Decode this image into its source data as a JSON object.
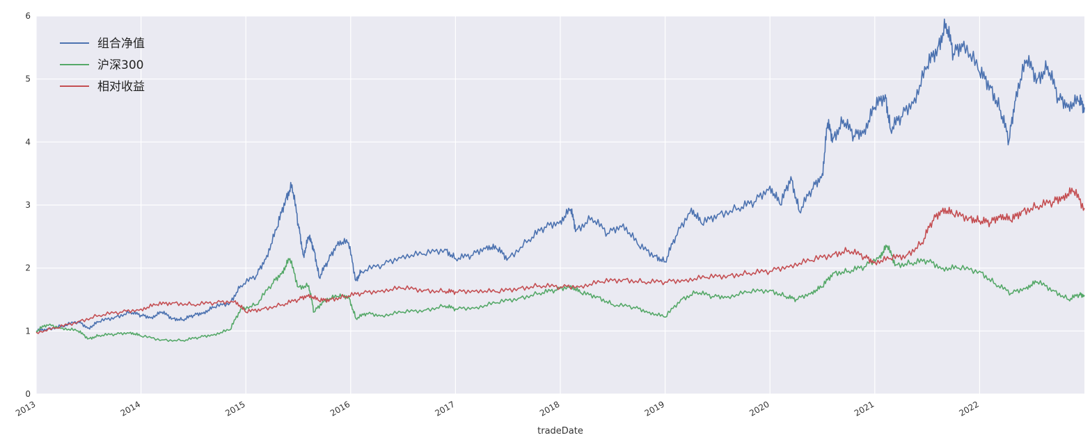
{
  "chart_data": {
    "type": "line",
    "title": "",
    "xlabel": "tradeDate",
    "ylabel": "",
    "xlim": [
      2013.0,
      2023.0
    ],
    "ylim": [
      0,
      6
    ],
    "x_ticks": [
      "2013",
      "2014",
      "2015",
      "2016",
      "2017",
      "2018",
      "2019",
      "2020",
      "2021",
      "2022"
    ],
    "y_ticks": [
      "0",
      "1",
      "2",
      "3",
      "4",
      "5",
      "6"
    ],
    "grid": true,
    "legend_position": "top-left",
    "background": "#eaeaf2",
    "series": [
      {
        "name": "组合净值",
        "color": "#4c72b0",
        "points": [
          [
            2013.0,
            1.0
          ],
          [
            2013.1,
            1.03
          ],
          [
            2013.25,
            1.08
          ],
          [
            2013.4,
            1.15
          ],
          [
            2013.5,
            1.05
          ],
          [
            2013.6,
            1.15
          ],
          [
            2013.75,
            1.22
          ],
          [
            2013.9,
            1.3
          ],
          [
            2014.0,
            1.25
          ],
          [
            2014.1,
            1.22
          ],
          [
            2014.2,
            1.3
          ],
          [
            2014.3,
            1.2
          ],
          [
            2014.4,
            1.18
          ],
          [
            2014.5,
            1.25
          ],
          [
            2014.6,
            1.3
          ],
          [
            2014.7,
            1.38
          ],
          [
            2014.85,
            1.45
          ],
          [
            2014.95,
            1.72
          ],
          [
            2015.1,
            1.88
          ],
          [
            2015.2,
            2.2
          ],
          [
            2015.3,
            2.65
          ],
          [
            2015.38,
            3.1
          ],
          [
            2015.44,
            3.32
          ],
          [
            2015.5,
            2.7
          ],
          [
            2015.55,
            2.2
          ],
          [
            2015.6,
            2.5
          ],
          [
            2015.65,
            2.3
          ],
          [
            2015.7,
            1.85
          ],
          [
            2015.78,
            2.1
          ],
          [
            2015.88,
            2.42
          ],
          [
            2015.98,
            2.4
          ],
          [
            2016.05,
            1.8
          ],
          [
            2016.1,
            1.95
          ],
          [
            2016.3,
            2.05
          ],
          [
            2016.5,
            2.2
          ],
          [
            2016.7,
            2.22
          ],
          [
            2016.9,
            2.3
          ],
          [
            2017.0,
            2.15
          ],
          [
            2017.15,
            2.2
          ],
          [
            2017.3,
            2.35
          ],
          [
            2017.4,
            2.3
          ],
          [
            2017.5,
            2.15
          ],
          [
            2017.7,
            2.45
          ],
          [
            2017.85,
            2.65
          ],
          [
            2018.0,
            2.75
          ],
          [
            2018.1,
            2.93
          ],
          [
            2018.15,
            2.6
          ],
          [
            2018.3,
            2.8
          ],
          [
            2018.45,
            2.55
          ],
          [
            2018.6,
            2.7
          ],
          [
            2018.75,
            2.35
          ],
          [
            2018.9,
            2.2
          ],
          [
            2019.0,
            2.1
          ],
          [
            2019.1,
            2.5
          ],
          [
            2019.25,
            2.95
          ],
          [
            2019.35,
            2.7
          ],
          [
            2019.5,
            2.85
          ],
          [
            2019.7,
            2.95
          ],
          [
            2019.85,
            3.05
          ],
          [
            2020.0,
            3.3
          ],
          [
            2020.1,
            3.0
          ],
          [
            2020.2,
            3.45
          ],
          [
            2020.28,
            2.9
          ],
          [
            2020.4,
            3.25
          ],
          [
            2020.5,
            3.5
          ],
          [
            2020.55,
            4.3
          ],
          [
            2020.6,
            4.05
          ],
          [
            2020.7,
            4.35
          ],
          [
            2020.8,
            4.1
          ],
          [
            2020.9,
            4.2
          ],
          [
            2021.0,
            4.55
          ],
          [
            2021.1,
            4.75
          ],
          [
            2021.15,
            4.2
          ],
          [
            2021.25,
            4.4
          ],
          [
            2021.38,
            4.7
          ],
          [
            2021.5,
            5.2
          ],
          [
            2021.6,
            5.5
          ],
          [
            2021.68,
            5.88
          ],
          [
            2021.75,
            5.4
          ],
          [
            2021.85,
            5.6
          ],
          [
            2022.0,
            5.1
          ],
          [
            2022.1,
            4.9
          ],
          [
            2022.2,
            4.5
          ],
          [
            2022.28,
            4.02
          ],
          [
            2022.35,
            4.8
          ],
          [
            2022.45,
            5.3
          ],
          [
            2022.55,
            5.0
          ],
          [
            2022.65,
            5.2
          ],
          [
            2022.75,
            4.7
          ],
          [
            2022.85,
            4.6
          ],
          [
            2022.95,
            4.65
          ],
          [
            2023.0,
            4.55
          ]
        ]
      },
      {
        "name": "沪深300",
        "color": "#55a868",
        "points": [
          [
            2013.0,
            1.0
          ],
          [
            2013.1,
            1.1
          ],
          [
            2013.25,
            1.05
          ],
          [
            2013.4,
            1.0
          ],
          [
            2013.5,
            0.88
          ],
          [
            2013.6,
            0.93
          ],
          [
            2013.75,
            0.95
          ],
          [
            2013.9,
            0.98
          ],
          [
            2014.0,
            0.92
          ],
          [
            2014.2,
            0.86
          ],
          [
            2014.4,
            0.85
          ],
          [
            2014.55,
            0.9
          ],
          [
            2014.7,
            0.95
          ],
          [
            2014.85,
            1.02
          ],
          [
            2014.95,
            1.35
          ],
          [
            2015.1,
            1.42
          ],
          [
            2015.25,
            1.75
          ],
          [
            2015.35,
            1.95
          ],
          [
            2015.42,
            2.15
          ],
          [
            2015.5,
            1.7
          ],
          [
            2015.6,
            1.72
          ],
          [
            2015.65,
            1.3
          ],
          [
            2015.75,
            1.5
          ],
          [
            2015.88,
            1.55
          ],
          [
            2015.98,
            1.55
          ],
          [
            2016.05,
            1.2
          ],
          [
            2016.15,
            1.28
          ],
          [
            2016.3,
            1.25
          ],
          [
            2016.5,
            1.3
          ],
          [
            2016.7,
            1.33
          ],
          [
            2016.9,
            1.4
          ],
          [
            2017.0,
            1.35
          ],
          [
            2017.2,
            1.38
          ],
          [
            2017.4,
            1.45
          ],
          [
            2017.6,
            1.52
          ],
          [
            2017.8,
            1.6
          ],
          [
            2017.95,
            1.65
          ],
          [
            2018.1,
            1.72
          ],
          [
            2018.2,
            1.6
          ],
          [
            2018.35,
            1.55
          ],
          [
            2018.5,
            1.42
          ],
          [
            2018.7,
            1.38
          ],
          [
            2018.85,
            1.3
          ],
          [
            2019.0,
            1.22
          ],
          [
            2019.15,
            1.5
          ],
          [
            2019.3,
            1.62
          ],
          [
            2019.45,
            1.55
          ],
          [
            2019.6,
            1.55
          ],
          [
            2019.8,
            1.62
          ],
          [
            2020.0,
            1.65
          ],
          [
            2020.15,
            1.55
          ],
          [
            2020.25,
            1.5
          ],
          [
            2020.4,
            1.62
          ],
          [
            2020.5,
            1.7
          ],
          [
            2020.6,
            1.92
          ],
          [
            2020.75,
            1.95
          ],
          [
            2020.9,
            2.02
          ],
          [
            2021.05,
            2.2
          ],
          [
            2021.12,
            2.35
          ],
          [
            2021.2,
            2.05
          ],
          [
            2021.35,
            2.08
          ],
          [
            2021.5,
            2.12
          ],
          [
            2021.65,
            2.0
          ],
          [
            2021.8,
            2.0
          ],
          [
            2022.0,
            1.95
          ],
          [
            2022.15,
            1.75
          ],
          [
            2022.3,
            1.6
          ],
          [
            2022.45,
            1.7
          ],
          [
            2022.55,
            1.78
          ],
          [
            2022.7,
            1.65
          ],
          [
            2022.85,
            1.5
          ],
          [
            2022.95,
            1.58
          ],
          [
            2023.0,
            1.57
          ]
        ]
      },
      {
        "name": "相对收益",
        "color": "#c44e52",
        "points": [
          [
            2013.0,
            0.98
          ],
          [
            2013.2,
            1.05
          ],
          [
            2013.4,
            1.15
          ],
          [
            2013.6,
            1.25
          ],
          [
            2013.8,
            1.3
          ],
          [
            2014.0,
            1.35
          ],
          [
            2014.15,
            1.42
          ],
          [
            2014.3,
            1.45
          ],
          [
            2014.5,
            1.42
          ],
          [
            2014.7,
            1.45
          ],
          [
            2014.9,
            1.48
          ],
          [
            2015.0,
            1.3
          ],
          [
            2015.15,
            1.35
          ],
          [
            2015.35,
            1.42
          ],
          [
            2015.5,
            1.5
          ],
          [
            2015.6,
            1.58
          ],
          [
            2015.7,
            1.48
          ],
          [
            2015.8,
            1.5
          ],
          [
            2015.95,
            1.55
          ],
          [
            2016.1,
            1.6
          ],
          [
            2016.3,
            1.65
          ],
          [
            2016.5,
            1.68
          ],
          [
            2016.7,
            1.65
          ],
          [
            2016.9,
            1.63
          ],
          [
            2017.0,
            1.62
          ],
          [
            2017.2,
            1.65
          ],
          [
            2017.4,
            1.62
          ],
          [
            2017.6,
            1.68
          ],
          [
            2017.8,
            1.72
          ],
          [
            2018.0,
            1.7
          ],
          [
            2018.2,
            1.72
          ],
          [
            2018.4,
            1.78
          ],
          [
            2018.6,
            1.82
          ],
          [
            2018.8,
            1.78
          ],
          [
            2019.0,
            1.78
          ],
          [
            2019.2,
            1.82
          ],
          [
            2019.4,
            1.85
          ],
          [
            2019.6,
            1.88
          ],
          [
            2019.8,
            1.92
          ],
          [
            2020.0,
            1.95
          ],
          [
            2020.2,
            2.05
          ],
          [
            2020.4,
            2.12
          ],
          [
            2020.6,
            2.22
          ],
          [
            2020.75,
            2.28
          ],
          [
            2020.9,
            2.18
          ],
          [
            2021.0,
            2.1
          ],
          [
            2021.15,
            2.15
          ],
          [
            2021.3,
            2.2
          ],
          [
            2021.45,
            2.4
          ],
          [
            2021.55,
            2.75
          ],
          [
            2021.65,
            2.95
          ],
          [
            2021.75,
            2.85
          ],
          [
            2021.9,
            2.8
          ],
          [
            2022.0,
            2.75
          ],
          [
            2022.1,
            2.72
          ],
          [
            2022.2,
            2.85
          ],
          [
            2022.3,
            2.75
          ],
          [
            2022.4,
            2.9
          ],
          [
            2022.55,
            2.98
          ],
          [
            2022.7,
            3.05
          ],
          [
            2022.8,
            3.15
          ],
          [
            2022.9,
            3.22
          ],
          [
            2023.0,
            2.95
          ]
        ]
      }
    ]
  }
}
